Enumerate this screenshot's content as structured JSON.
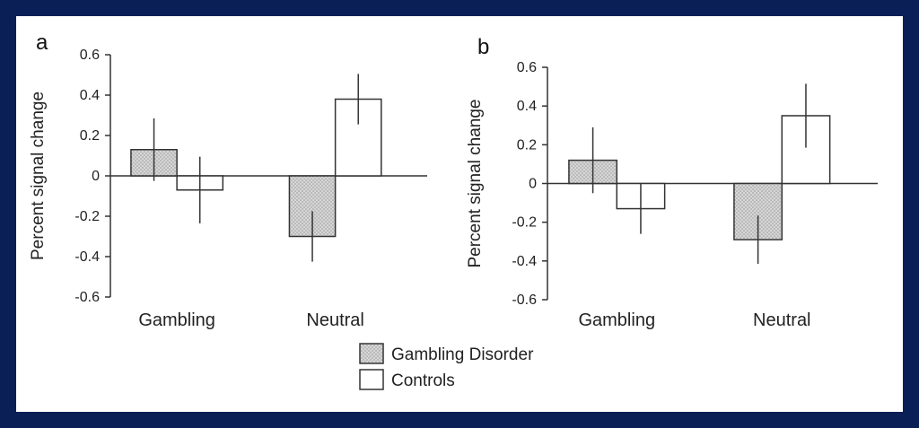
{
  "colors": {
    "border": "#0b1f57",
    "gambling_disorder_fill": "#cfcfcf",
    "controls_fill": "#ffffff",
    "stroke": "#333333"
  },
  "legend": {
    "position": "bottom-center",
    "items": [
      {
        "label": "Gambling Disorder",
        "fill": "#cfcfcf",
        "pattern": "dotted-gray"
      },
      {
        "label": "Controls",
        "fill": "#ffffff",
        "pattern": "none"
      }
    ]
  },
  "chart_data": [
    {
      "type": "bar",
      "panel_label": "a",
      "ylabel": "Percent signal change",
      "ylim": [
        -0.6,
        0.6
      ],
      "yticks": [
        "0.6",
        "0.4",
        "0.2",
        "0",
        "-0.2",
        "-0.4",
        "-0.6"
      ],
      "ytick_values": [
        0.6,
        0.4,
        0.2,
        0,
        -0.2,
        -0.4,
        -0.6
      ],
      "categories": [
        "Gambling",
        "Neutral"
      ],
      "series": [
        {
          "name": "Gambling Disorder",
          "values": [
            0.13,
            -0.3
          ],
          "errors": [
            0.155,
            0.125
          ]
        },
        {
          "name": "Controls",
          "values": [
            -0.07,
            0.38
          ],
          "errors": [
            0.165,
            0.125
          ]
        }
      ],
      "grid": false
    },
    {
      "type": "bar",
      "panel_label": "b",
      "ylabel": "Percent signal change",
      "ylim": [
        -0.6,
        0.6
      ],
      "yticks": [
        "0.6",
        "0.4",
        "0.2",
        "0",
        "-0.2",
        "-0.4",
        "-0.6"
      ],
      "ytick_values": [
        0.6,
        0.4,
        0.2,
        0,
        -0.2,
        -0.4,
        -0.6
      ],
      "categories": [
        "Gambling",
        "Neutral"
      ],
      "series": [
        {
          "name": "Gambling Disorder",
          "values": [
            0.12,
            -0.29
          ],
          "errors": [
            0.17,
            0.125
          ]
        },
        {
          "name": "Controls",
          "values": [
            -0.13,
            0.35
          ],
          "errors": [
            0.13,
            0.165
          ]
        }
      ],
      "grid": false
    }
  ]
}
